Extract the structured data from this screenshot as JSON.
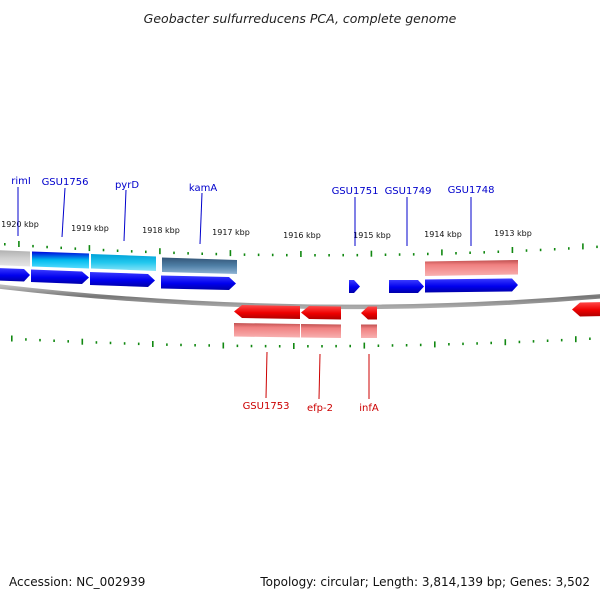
{
  "title": "Geobacter sulfurreducens PCA, complete genome",
  "footer": {
    "accession": "Accession: NC_002939",
    "topology": "Topology: circular; Length: 3,814,139 bp; Genes: 3,502"
  },
  "scale_labels": [
    "1920 kbp",
    "1919 kbp",
    "1918 kbp",
    "1917 kbp",
    "1916 kbp",
    "1915 kbp",
    "1914 kbp",
    "1913 kbp"
  ],
  "genes_forward": [
    {
      "name": "rimI",
      "color": "#0000cc"
    },
    {
      "name": "GSU1756",
      "color": "#0000cc"
    },
    {
      "name": "pyrD",
      "color": "#0000cc"
    },
    {
      "name": "kamA",
      "color": "#0000cc"
    },
    {
      "name": "GSU1751",
      "color": "#0000cc"
    },
    {
      "name": "GSU1749",
      "color": "#0000cc"
    },
    {
      "name": "GSU1748",
      "color": "#0000cc"
    }
  ],
  "genes_reverse": [
    {
      "name": "GSU1753",
      "color": "#cc0000"
    },
    {
      "name": "efp-2",
      "color": "#cc0000"
    },
    {
      "name": "infA",
      "color": "#cc0000"
    }
  ],
  "colors": {
    "forward_gene": "#0000ee",
    "reverse_gene": "#ee0000",
    "backbone": "#808080",
    "ticks": "#118811"
  }
}
